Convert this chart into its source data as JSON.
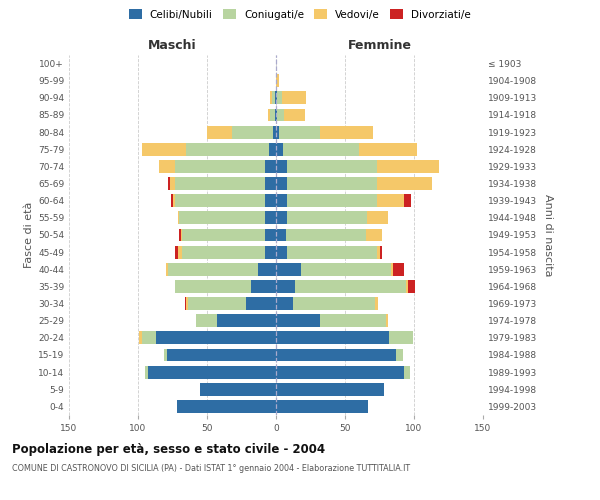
{
  "age_groups": [
    "0-4",
    "5-9",
    "10-14",
    "15-19",
    "20-24",
    "25-29",
    "30-34",
    "35-39",
    "40-44",
    "45-49",
    "50-54",
    "55-59",
    "60-64",
    "65-69",
    "70-74",
    "75-79",
    "80-84",
    "85-89",
    "90-94",
    "95-99",
    "100+"
  ],
  "birth_years": [
    "1999-2003",
    "1994-1998",
    "1989-1993",
    "1984-1988",
    "1979-1983",
    "1974-1978",
    "1969-1973",
    "1964-1968",
    "1959-1963",
    "1954-1958",
    "1949-1953",
    "1944-1948",
    "1939-1943",
    "1934-1938",
    "1929-1933",
    "1924-1928",
    "1919-1923",
    "1914-1918",
    "1909-1913",
    "1904-1908",
    "≤ 1903"
  ],
  "maschi": {
    "celibi": [
      72,
      55,
      93,
      79,
      87,
      43,
      22,
      18,
      13,
      8,
      8,
      8,
      8,
      8,
      8,
      5,
      2,
      1,
      1,
      0,
      0
    ],
    "coniugati": [
      0,
      0,
      2,
      2,
      10,
      15,
      42,
      55,
      65,
      60,
      60,
      62,
      65,
      65,
      65,
      60,
      30,
      3,
      2,
      0,
      0
    ],
    "vedovi": [
      0,
      0,
      0,
      0,
      2,
      0,
      1,
      0,
      2,
      3,
      1,
      1,
      2,
      4,
      12,
      32,
      18,
      2,
      1,
      0,
      0
    ],
    "divorziati": [
      0,
      0,
      0,
      0,
      0,
      0,
      1,
      0,
      0,
      2,
      1,
      0,
      1,
      1,
      0,
      0,
      0,
      0,
      0,
      0,
      0
    ]
  },
  "femmine": {
    "nubili": [
      67,
      78,
      93,
      87,
      82,
      32,
      12,
      14,
      18,
      8,
      7,
      8,
      8,
      8,
      8,
      5,
      2,
      1,
      1,
      0,
      0
    ],
    "coniugate": [
      0,
      0,
      4,
      5,
      17,
      48,
      60,
      80,
      65,
      65,
      58,
      58,
      65,
      65,
      65,
      55,
      30,
      5,
      3,
      0,
      0
    ],
    "vedove": [
      0,
      0,
      0,
      0,
      0,
      1,
      2,
      2,
      2,
      2,
      12,
      15,
      20,
      40,
      45,
      42,
      38,
      15,
      18,
      2,
      0
    ],
    "divorziate": [
      0,
      0,
      0,
      0,
      0,
      0,
      0,
      5,
      8,
      2,
      0,
      0,
      5,
      0,
      0,
      0,
      0,
      0,
      0,
      0,
      0
    ]
  },
  "colors": {
    "celibi": "#2e6da4",
    "coniugati": "#b8d4a0",
    "vedovi": "#f5c869",
    "divorziati": "#cc2222"
  },
  "title": "Popolazione per età, sesso e stato civile - 2004",
  "subtitle": "COMUNE DI CASTRONOVO DI SICILIA (PA) - Dati ISTAT 1° gennaio 2004 - Elaborazione TUTTITALIA.IT",
  "ylabel_left": "Fasce di età",
  "ylabel_right": "Anni di nascita",
  "xlabel_maschi": "Maschi",
  "xlabel_femmine": "Femmine",
  "xlim": 150,
  "background_color": "#ffffff",
  "grid_color": "#cccccc"
}
